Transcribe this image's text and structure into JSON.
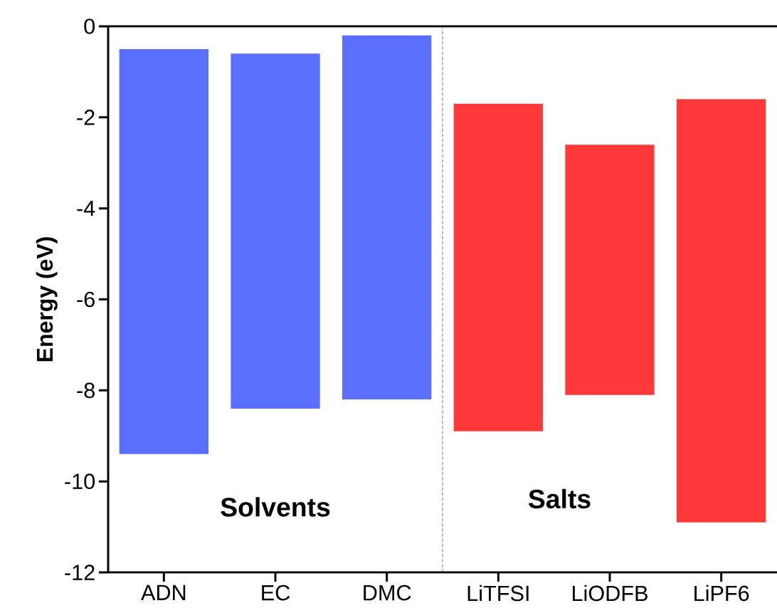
{
  "chart_data": {
    "type": "bar",
    "ylabel": "Energy (eV)",
    "categories": [
      "ADN",
      "EC",
      "DMC",
      "LiTFSI",
      "LiODFB",
      "LiPF6"
    ],
    "base": [
      -9.4,
      -8.4,
      -8.2,
      -8.9,
      -8.1,
      -10.9
    ],
    "values": [
      8.9,
      7.8,
      8.0,
      7.2,
      5.5,
      9.3
    ],
    "colors": [
      "#5a6fff",
      "#5a6fff",
      "#5a6fff",
      "#ff383a",
      "#ff383a",
      "#ff383a"
    ],
    "ylim": [
      -12,
      0
    ],
    "yticks": [
      -12,
      -10,
      -8,
      -6,
      -4,
      -2,
      0
    ],
    "annotations": [
      "Solvents",
      "Salts"
    ]
  }
}
